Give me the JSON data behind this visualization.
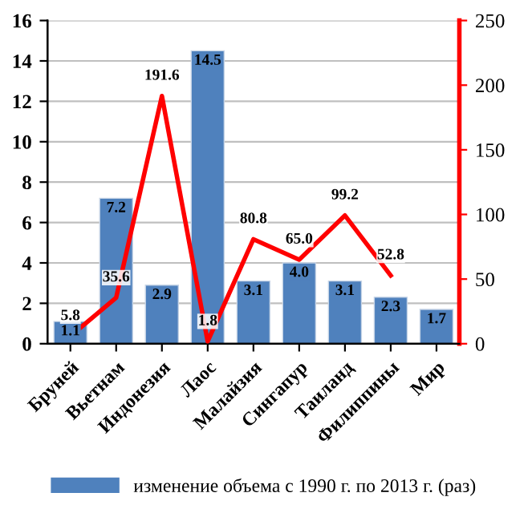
{
  "chart_data": {
    "type": "bar",
    "categories": [
      "Бруней",
      "Вьетнам",
      "Индонезия",
      "Лаос",
      "Малайзия",
      "Сингапур",
      "Таиланд",
      "Филиппины",
      "Мир"
    ],
    "series": [
      {
        "name": "изменение объема с 1990 г. по 2013 г. (раз)",
        "color": "#4f81bd",
        "values": [
          1.1,
          7.2,
          2.9,
          14.5,
          3.1,
          4.0,
          3.1,
          2.3,
          1.7
        ],
        "value_labels": [
          "1.1",
          "7.2",
          "2.9",
          "14.5",
          "3.1",
          "4.0",
          "3.1",
          "2.3",
          "1.7"
        ]
      },
      {
        "type": "line",
        "axis": "y2",
        "color": "#ff0000",
        "values": [
          5.8,
          35.6,
          191.6,
          1.8,
          80.8,
          65.0,
          99.2,
          52.8,
          null
        ],
        "value_labels": [
          "5.8",
          "35.6",
          "191.6",
          "1.8",
          "80.8",
          "65.0",
          "99.2",
          "52.8",
          null
        ]
      }
    ],
    "ylim": [
      0,
      16
    ],
    "yticks": [
      0,
      2,
      4,
      6,
      8,
      10,
      12,
      14,
      16
    ],
    "y2lim": [
      0,
      250
    ],
    "y2ticks": [
      0,
      50,
      100,
      150,
      200,
      250
    ],
    "grid": "y",
    "legend": "bottom",
    "marker": "none",
    "line_style": "solid"
  }
}
